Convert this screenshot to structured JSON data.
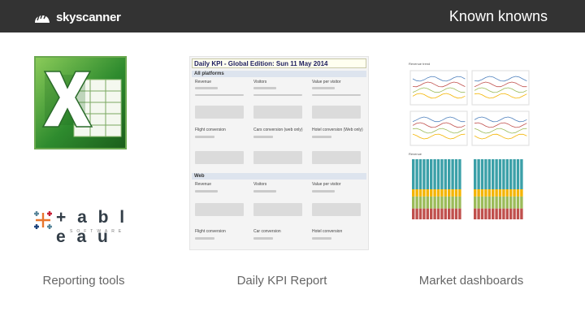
{
  "header": {
    "brand": "skyscanner",
    "title": "Known knowns",
    "background": "#333333"
  },
  "columns": [
    {
      "caption": "Reporting tools",
      "tools": [
        "excel-logo-icon",
        "tableau-logo-icon"
      ]
    },
    {
      "caption": "Daily KPI Report"
    },
    {
      "caption": "Market dashboards"
    }
  ],
  "logos": {
    "tableau_word": "+ a b l e a u",
    "tableau_sub": "SOFTWARE"
  },
  "report": {
    "title": "Daily KPI - Global Edition: Sun 11 May 2014",
    "sections": [
      {
        "heading": "All platforms",
        "metrics": [
          "Revenue",
          "Visitors",
          "Value per visitor"
        ],
        "metrics2": [
          "Flight conversion",
          "Cars conversion (web only)",
          "Hotel conversion (Web only)"
        ]
      },
      {
        "heading": "Web",
        "metrics": [
          "Revenue",
          "Visitors",
          "Value per visitor"
        ],
        "metrics2": [
          "Flight conversion",
          "Car conversion",
          "Hotel conversion"
        ]
      }
    ]
  },
  "dashboard": {
    "panel1_title": "Revenue trend",
    "panel2_title": "Revenue",
    "colors": [
      "#4f81bd",
      "#c0504d",
      "#9bbb59",
      "#f4b400",
      "#3ba0a8"
    ]
  }
}
